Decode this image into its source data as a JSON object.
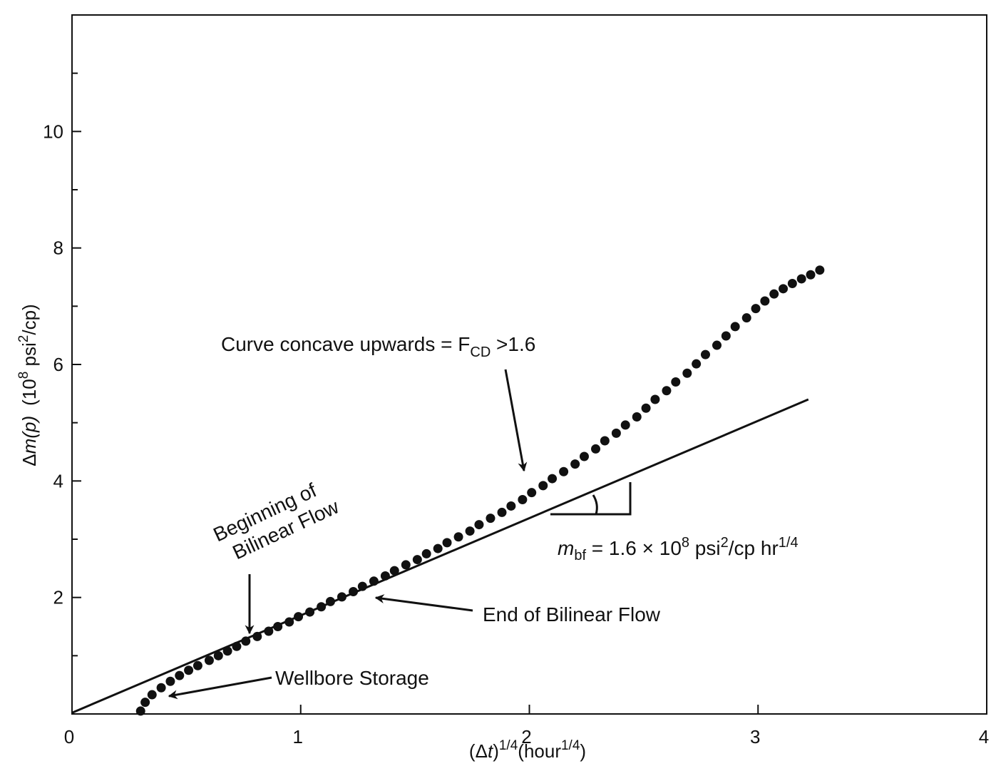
{
  "chart_data": {
    "type": "scatter",
    "title": "",
    "xlabel": {
      "open": "(",
      "delta": "Δ",
      "var": "t",
      "close": ")",
      "exp": "1/4",
      "unit": "(hour",
      "unit_exp": "1/4",
      "unit_close": ")"
    },
    "ylabel": {
      "delta": "Δ",
      "var": "m",
      "arg": "(p)",
      "scale_open": "(10",
      "scale_exp": "8",
      "scale_unit": " psi",
      "scale_unit_exp": "2",
      "scale_close": "/cp)"
    },
    "xlim": [
      0,
      4
    ],
    "ylim": [
      0,
      12
    ],
    "xticks": [
      {
        "value": 0,
        "label": "0"
      },
      {
        "value": 1,
        "label": "1"
      },
      {
        "value": 2,
        "label": "2"
      },
      {
        "value": 3,
        "label": "3"
      },
      {
        "value": 4,
        "label": "4"
      }
    ],
    "yticks": [
      {
        "value": 2,
        "label": "2"
      },
      {
        "value": 4,
        "label": "4"
      },
      {
        "value": 6,
        "label": "6"
      },
      {
        "value": 8,
        "label": "8"
      },
      {
        "value": 10,
        "label": "10"
      }
    ],
    "y_minor_ticks": [
      1,
      3,
      5,
      7,
      9,
      11
    ],
    "grid": false,
    "fit_line": {
      "x": [
        0,
        3.22
      ],
      "y": [
        0.02,
        5.4
      ]
    },
    "series": [
      {
        "x": [
          0.3,
          0.32,
          0.35,
          0.39,
          0.43,
          0.47,
          0.51,
          0.55,
          0.6,
          0.64,
          0.68,
          0.72,
          0.76,
          0.81,
          0.86,
          0.9,
          0.95,
          0.99,
          1.04,
          1.09,
          1.13,
          1.18,
          1.23,
          1.27,
          1.32,
          1.37,
          1.41,
          1.46,
          1.51,
          1.55,
          1.6,
          1.64,
          1.69,
          1.74,
          1.78,
          1.83,
          1.88,
          1.92,
          1.97,
          2.01,
          2.06,
          2.1,
          2.15,
          2.2,
          2.24,
          2.29,
          2.33,
          2.38,
          2.42,
          2.47,
          2.51,
          2.55,
          2.6,
          2.64,
          2.69,
          2.73,
          2.77,
          2.82,
          2.86,
          2.9,
          2.95,
          2.99,
          3.03,
          3.07,
          3.11,
          3.15,
          3.19,
          3.23,
          3.27
        ],
        "y": [
          0.05,
          0.2,
          0.33,
          0.45,
          0.56,
          0.66,
          0.75,
          0.83,
          0.92,
          1.0,
          1.08,
          1.16,
          1.25,
          1.33,
          1.42,
          1.5,
          1.58,
          1.67,
          1.75,
          1.84,
          1.93,
          2.01,
          2.1,
          2.19,
          2.28,
          2.37,
          2.46,
          2.56,
          2.65,
          2.75,
          2.84,
          2.94,
          3.04,
          3.14,
          3.25,
          3.36,
          3.46,
          3.57,
          3.68,
          3.8,
          3.92,
          4.04,
          4.16,
          4.29,
          4.42,
          4.55,
          4.69,
          4.82,
          4.96,
          5.1,
          5.25,
          5.4,
          5.55,
          5.7,
          5.85,
          6.01,
          6.17,
          6.33,
          6.49,
          6.65,
          6.8,
          6.96,
          7.09,
          7.21,
          7.3,
          7.39,
          7.47,
          7.54,
          7.62
        ]
      }
    ],
    "annotations": {
      "concave": {
        "main": "Curve concave upwards = F",
        "sub": "CD",
        "tail": " >1.6"
      },
      "beginning": {
        "line1": "Beginning of",
        "line2": "Bilinear Flow"
      },
      "end": {
        "text": "End of Bilinear Flow"
      },
      "wellbore": {
        "text": "Wellbore Storage"
      },
      "slope": {
        "m": "m",
        "sub": "bf",
        "part1": " = 1.6 × 10",
        "exp1": "8",
        "part2": " psi",
        "exp2": "2",
        "part3": "/cp hr",
        "exp3": "1/4"
      }
    }
  }
}
